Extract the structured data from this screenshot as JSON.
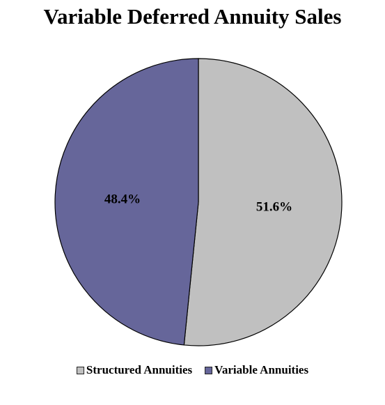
{
  "chart_data": {
    "type": "pie",
    "title": "Variable Deferred Annuity Sales",
    "slices": [
      {
        "name": "Structured Annuities",
        "value": 51.6,
        "label": "51.6%",
        "color": "#c0c0c0"
      },
      {
        "name": "Variable Annuities",
        "value": 48.4,
        "label": "48.4%",
        "color": "#66669a"
      }
    ],
    "start_angle": "12 o'clock",
    "direction": "clockwise",
    "legend_position": "bottom"
  }
}
